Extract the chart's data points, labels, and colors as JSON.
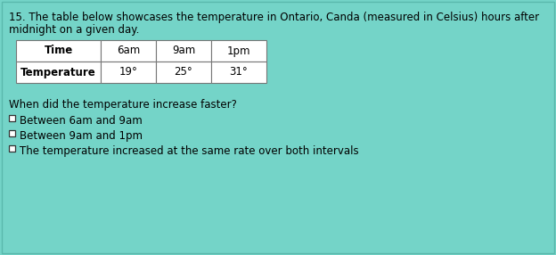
{
  "bg_color": "#74d4c8",
  "border_color": "#5ab8ac",
  "question_number": "15.",
  "question_text": " The table below showcases the temperature in Ontario, Canda (measured in Celsius) hours after",
  "question_text2": "midnight on a given day.",
  "table": {
    "headers": [
      "Time",
      "6am",
      "9am",
      "1pm"
    ],
    "row_label": "Temperature",
    "values": [
      "19°",
      "25°",
      "31°"
    ]
  },
  "question_line": "When did the temperature increase faster?",
  "options": [
    "Between 6am and 9am",
    "Between 9am and 1pm",
    "The temperature increased at the same rate over both intervals"
  ],
  "font_size_text": 8.5,
  "font_size_table": 8.5,
  "font_size_options": 8.5
}
